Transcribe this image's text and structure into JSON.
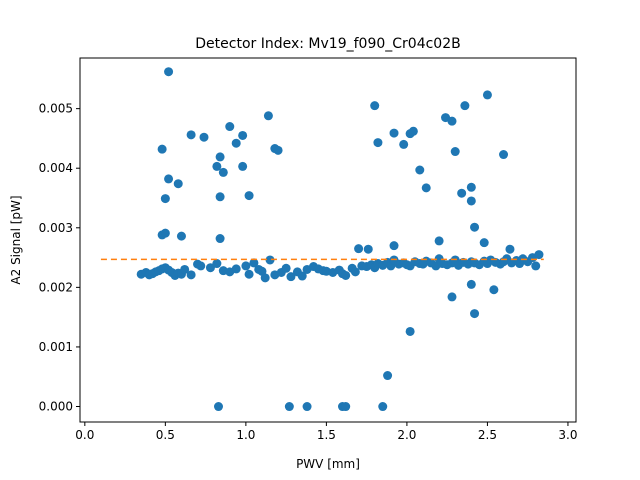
{
  "chart_data": {
    "type": "scatter",
    "title": "Detector Index: Mv19_f090_Cr04c02B",
    "xlabel": "PWV [mm]",
    "ylabel": "A2 Signal [pW]",
    "xlim": [
      -0.03,
      3.05
    ],
    "ylim": [
      -0.00026,
      0.00585
    ],
    "x_ticks": [
      0.0,
      0.5,
      1.0,
      1.5,
      2.0,
      2.5,
      3.0
    ],
    "x_tick_labels": [
      "0.0",
      "0.5",
      "1.0",
      "1.5",
      "2.0",
      "2.5",
      "3.0"
    ],
    "y_ticks": [
      0.0,
      0.001,
      0.002,
      0.003,
      0.004,
      0.005
    ],
    "y_tick_labels": [
      "0.000",
      "0.001",
      "0.002",
      "0.003",
      "0.004",
      "0.005"
    ],
    "grid": false,
    "colors": {
      "points": "#1f77b4",
      "fit_line": "#ff7f0e"
    },
    "series": [
      {
        "name": "measurements",
        "kind": "scatter",
        "points": [
          [
            0.35,
            0.00222
          ],
          [
            0.38,
            0.00225
          ],
          [
            0.4,
            0.00221
          ],
          [
            0.42,
            0.00223
          ],
          [
            0.44,
            0.00226
          ],
          [
            0.46,
            0.00228
          ],
          [
            0.48,
            0.00231
          ],
          [
            0.5,
            0.00233
          ],
          [
            0.52,
            0.00229
          ],
          [
            0.54,
            0.00225
          ],
          [
            0.56,
            0.0022
          ],
          [
            0.58,
            0.00224
          ],
          [
            0.6,
            0.00222
          ],
          [
            0.62,
            0.0023
          ],
          [
            0.66,
            0.00221
          ],
          [
            0.7,
            0.00239
          ],
          [
            0.72,
            0.00236
          ],
          [
            0.78,
            0.00233
          ],
          [
            0.82,
            0.0024
          ],
          [
            0.86,
            0.00228
          ],
          [
            0.9,
            0.00226
          ],
          [
            0.94,
            0.00231
          ],
          [
            1.0,
            0.00236
          ],
          [
            1.02,
            0.00222
          ],
          [
            1.05,
            0.00241
          ],
          [
            1.08,
            0.0023
          ],
          [
            1.1,
            0.00227
          ],
          [
            1.12,
            0.00216
          ],
          [
            1.15,
            0.00246
          ],
          [
            1.18,
            0.00221
          ],
          [
            1.22,
            0.00225
          ],
          [
            1.25,
            0.00232
          ],
          [
            1.28,
            0.00218
          ],
          [
            1.32,
            0.00226
          ],
          [
            1.35,
            0.00219
          ],
          [
            1.38,
            0.0023
          ],
          [
            1.42,
            0.00235
          ],
          [
            1.45,
            0.00231
          ],
          [
            1.48,
            0.00228
          ],
          [
            1.5,
            0.00227
          ],
          [
            1.54,
            0.00225
          ],
          [
            1.58,
            0.00229
          ],
          [
            1.6,
            0.00223
          ],
          [
            1.62,
            0.0022
          ],
          [
            1.66,
            0.00232
          ],
          [
            1.68,
            0.00226
          ],
          [
            1.72,
            0.00236
          ],
          [
            1.75,
            0.00235
          ],
          [
            1.78,
            0.00238
          ],
          [
            1.8,
            0.00233
          ],
          [
            1.82,
            0.0024
          ],
          [
            1.85,
            0.00237
          ],
          [
            1.88,
            0.00242
          ],
          [
            1.9,
            0.00236
          ],
          [
            1.92,
            0.00246
          ],
          [
            1.95,
            0.00239
          ],
          [
            1.98,
            0.00241
          ],
          [
            2.0,
            0.00238
          ],
          [
            2.02,
            0.00236
          ],
          [
            2.05,
            0.00243
          ],
          [
            2.08,
            0.0024
          ],
          [
            2.1,
            0.00239
          ],
          [
            2.12,
            0.00244
          ],
          [
            2.15,
            0.00241
          ],
          [
            2.18,
            0.00236
          ],
          [
            2.2,
            0.00248
          ],
          [
            2.22,
            0.0024
          ],
          [
            2.25,
            0.00238
          ],
          [
            2.28,
            0.00241
          ],
          [
            2.3,
            0.00246
          ],
          [
            2.32,
            0.00237
          ],
          [
            2.35,
            0.00242
          ],
          [
            2.38,
            0.00239
          ],
          [
            2.4,
            0.00243
          ],
          [
            2.42,
            0.00241
          ],
          [
            2.45,
            0.00238
          ],
          [
            2.48,
            0.00244
          ],
          [
            2.5,
            0.0024
          ],
          [
            2.52,
            0.00246
          ],
          [
            2.55,
            0.00242
          ],
          [
            2.58,
            0.00239
          ],
          [
            2.6,
            0.00243
          ],
          [
            2.62,
            0.00248
          ],
          [
            2.65,
            0.00241
          ],
          [
            2.68,
            0.00245
          ],
          [
            2.7,
            0.0024
          ],
          [
            2.72,
            0.00248
          ],
          [
            2.75,
            0.00243
          ],
          [
            2.78,
            0.0025
          ],
          [
            2.8,
            0.00236
          ],
          [
            2.82,
            0.00255
          ],
          [
            0.52,
            0.00562
          ],
          [
            0.48,
            0.00432
          ],
          [
            0.52,
            0.00382
          ],
          [
            0.58,
            0.00374
          ],
          [
            0.5,
            0.00349
          ],
          [
            0.48,
            0.00288
          ],
          [
            0.5,
            0.00291
          ],
          [
            0.6,
            0.00286
          ],
          [
            0.66,
            0.00456
          ],
          [
            0.74,
            0.00452
          ],
          [
            0.82,
            0.00403
          ],
          [
            0.84,
            0.00419
          ],
          [
            0.86,
            0.00393
          ],
          [
            0.84,
            0.00352
          ],
          [
            0.84,
            0.00282
          ],
          [
            0.9,
            0.0047
          ],
          [
            0.94,
            0.00442
          ],
          [
            0.98,
            0.00455
          ],
          [
            0.98,
            0.00403
          ],
          [
            1.02,
            0.00354
          ],
          [
            1.14,
            0.00488
          ],
          [
            1.18,
            0.00433
          ],
          [
            1.2,
            0.0043
          ],
          [
            1.8,
            0.00505
          ],
          [
            1.82,
            0.00443
          ],
          [
            1.92,
            0.00459
          ],
          [
            1.98,
            0.0044
          ],
          [
            2.02,
            0.00458
          ],
          [
            2.04,
            0.00462
          ],
          [
            2.08,
            0.00397
          ],
          [
            2.12,
            0.00367
          ],
          [
            2.24,
            0.00485
          ],
          [
            2.28,
            0.00479
          ],
          [
            2.3,
            0.00428
          ],
          [
            2.34,
            0.00358
          ],
          [
            2.36,
            0.00505
          ],
          [
            2.4,
            0.00368
          ],
          [
            2.4,
            0.00345
          ],
          [
            2.42,
            0.00301
          ],
          [
            2.5,
            0.00523
          ],
          [
            2.6,
            0.00423
          ],
          [
            1.76,
            0.00264
          ],
          [
            1.92,
            0.0027
          ],
          [
            2.2,
            0.00278
          ],
          [
            2.48,
            0.00275
          ],
          [
            2.64,
            0.00264
          ],
          [
            1.7,
            0.00265
          ],
          [
            2.28,
            0.00184
          ],
          [
            2.4,
            0.00205
          ],
          [
            2.42,
            0.00156
          ],
          [
            2.54,
            0.00196
          ],
          [
            2.02,
            0.00126
          ],
          [
            1.88,
            0.00052
          ],
          [
            0.83,
            0.0
          ],
          [
            1.27,
            0.0
          ],
          [
            1.38,
            0.0
          ],
          [
            1.6,
            0.0
          ],
          [
            1.62,
            0.0
          ],
          [
            1.85,
            0.0
          ]
        ]
      },
      {
        "name": "fit",
        "kind": "dashed-line",
        "x": [
          0.1,
          2.85
        ],
        "y": [
          0.00247,
          0.00247
        ]
      }
    ]
  }
}
